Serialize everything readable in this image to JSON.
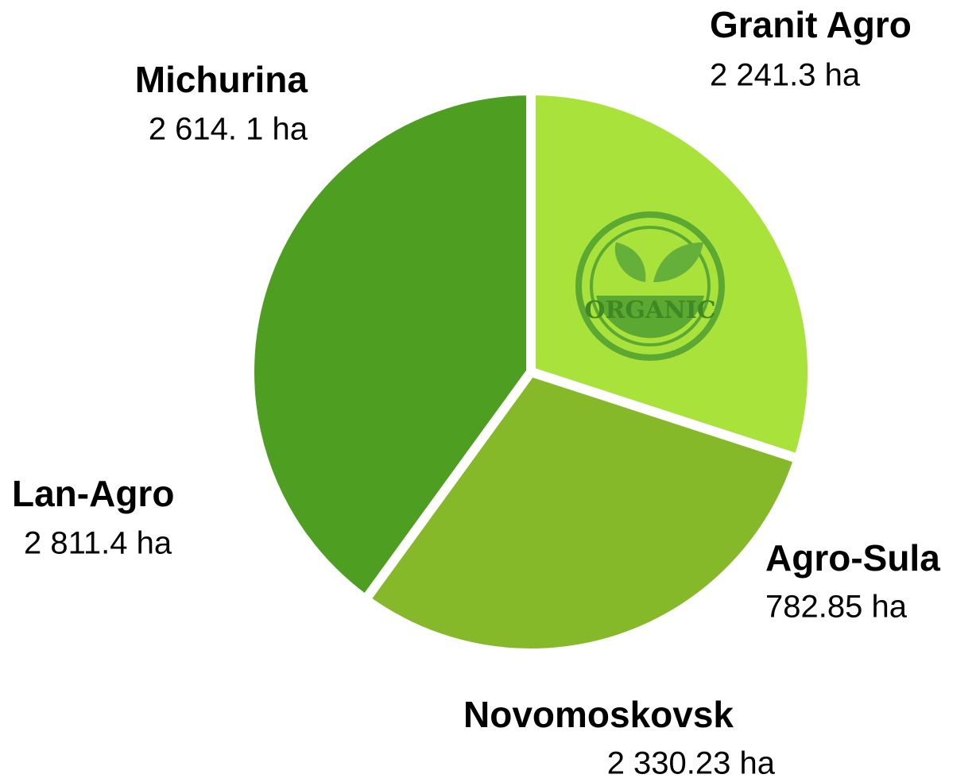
{
  "chart_data": {
    "type": "pie",
    "categories": [
      "Granit Agro",
      "Novomoskovsk",
      null
    ],
    "values": [
      30,
      30,
      40
    ],
    "colors": [
      "#a8e23a",
      "#86b92a",
      "#4e9e22"
    ],
    "annotations": [
      {
        "name": "Granit Agro",
        "text": "2 241.3 ha"
      },
      {
        "name": "Michurina",
        "text": "2 614. 1 ha"
      },
      {
        "name": "Lan-Agro",
        "text": "2 811.4 ha"
      },
      {
        "name": "Agro-Sula",
        "text": "782.85 ha"
      },
      {
        "name": "Novomoskovsk",
        "text": "2 330.23 ha"
      }
    ],
    "badge": "ORGANIC"
  }
}
